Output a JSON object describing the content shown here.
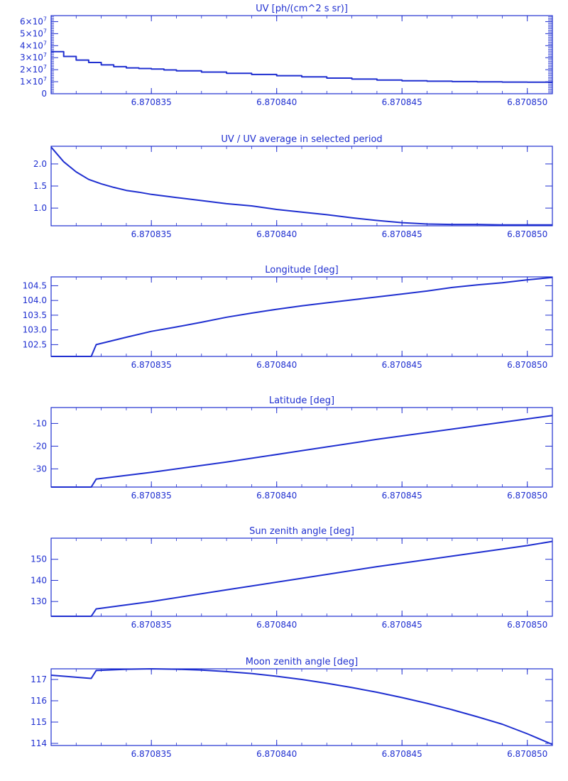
{
  "chart_data": [
    {
      "type": "line",
      "title": "UV [ph/(cm^2 s sr)]",
      "xlabel": "",
      "ylabel": "",
      "xlim": [
        6.870831,
        6.870851
      ],
      "ylim": [
        0,
        65000000.0
      ],
      "x_ticks": [
        6.870835,
        6.87084,
        6.870845,
        6.87085
      ],
      "x_tick_labels": [
        "6.870835",
        "6.870840",
        "6.870845",
        "6.870850"
      ],
      "y_ticks": [
        0,
        10000000.0,
        20000000.0,
        30000000.0,
        40000000.0,
        50000000.0,
        60000000.0
      ],
      "y_tick_labels": [
        {
          "mantissa": "0",
          "exponent": ""
        },
        {
          "mantissa": "1×10",
          "exponent": "7"
        },
        {
          "mantissa": "2×10",
          "exponent": "7"
        },
        {
          "mantissa": "3×10",
          "exponent": "7"
        },
        {
          "mantissa": "4×10",
          "exponent": "7"
        },
        {
          "mantissa": "5×10",
          "exponent": "7"
        },
        {
          "mantissa": "6×10",
          "exponent": "7"
        }
      ],
      "step": true,
      "series": [
        {
          "x": [
            6.870831,
            6.8708315,
            6.870832,
            6.8708325,
            6.870833,
            6.8708335,
            6.870834,
            6.8708345,
            6.870835,
            6.8708355,
            6.870836,
            6.870837,
            6.870838,
            6.870839,
            6.87084,
            6.870841,
            6.870842,
            6.870843,
            6.870844,
            6.870845,
            6.870846,
            6.870847,
            6.870848,
            6.870849,
            6.87085,
            6.870851
          ],
          "y": [
            35000000,
            31000000,
            28000000,
            26000000,
            24000000,
            22500000,
            21500000,
            21000000,
            20500000,
            19800000,
            19000000,
            18000000,
            17000000,
            16000000,
            15000000,
            14000000,
            13000000,
            12200000,
            11400000,
            10800000,
            10400000,
            10100000,
            9900000,
            9700000,
            9600000,
            9500000
          ]
        }
      ]
    },
    {
      "type": "line",
      "title": "UV / UV average in selected period",
      "xlabel": "",
      "ylabel": "",
      "xlim": [
        6.870831,
        6.870851
      ],
      "ylim": [
        0.6,
        2.4
      ],
      "x_ticks": [
        6.870835,
        6.87084,
        6.870845,
        6.87085
      ],
      "x_tick_labels": [
        "6.870835",
        "6.870840",
        "6.870845",
        "6.870850"
      ],
      "y_ticks": [
        1.0,
        1.5,
        2.0
      ],
      "y_tick_labels": [
        "1.0",
        "1.5",
        "2.0"
      ],
      "series": [
        {
          "x": [
            6.870831,
            6.8708315,
            6.870832,
            6.8708325,
            6.870833,
            6.8708335,
            6.870834,
            6.8708345,
            6.870835,
            6.870836,
            6.870837,
            6.870838,
            6.870839,
            6.87084,
            6.870841,
            6.870842,
            6.870843,
            6.870844,
            6.870845,
            6.870846,
            6.870847,
            6.870848,
            6.870849,
            6.87085,
            6.870851
          ],
          "y": [
            2.38,
            2.05,
            1.82,
            1.65,
            1.55,
            1.47,
            1.4,
            1.36,
            1.31,
            1.24,
            1.17,
            1.1,
            1.05,
            0.97,
            0.91,
            0.85,
            0.78,
            0.72,
            0.67,
            0.64,
            0.63,
            0.63,
            0.62,
            0.62,
            0.62
          ]
        }
      ]
    },
    {
      "type": "line",
      "title": "Longitude [deg]",
      "xlabel": "",
      "ylabel": "",
      "xlim": [
        6.870831,
        6.870851
      ],
      "ylim": [
        102.1,
        104.8
      ],
      "x_ticks": [
        6.870835,
        6.87084,
        6.870845,
        6.87085
      ],
      "x_tick_labels": [
        "6.870835",
        "6.870840",
        "6.870845",
        "6.870850"
      ],
      "y_ticks": [
        102.5,
        103.0,
        103.5,
        104.0,
        104.5
      ],
      "y_tick_labels": [
        "102.5",
        "103.0",
        "103.5",
        "104.0",
        "104.5"
      ],
      "series": [
        {
          "x": [
            6.870831,
            6.8708326,
            6.8708328,
            6.870834,
            6.870835,
            6.870836,
            6.870837,
            6.870838,
            6.870839,
            6.87084,
            6.870841,
            6.870842,
            6.870843,
            6.870844,
            6.870845,
            6.870846,
            6.870847,
            6.870848,
            6.870849,
            6.87085,
            6.870851
          ],
          "y": [
            102.1,
            102.1,
            102.5,
            102.75,
            102.95,
            103.1,
            103.26,
            103.43,
            103.57,
            103.7,
            103.82,
            103.92,
            104.02,
            104.12,
            104.22,
            104.32,
            104.44,
            104.53,
            104.6,
            104.7,
            104.78
          ]
        }
      ]
    },
    {
      "type": "line",
      "title": "Latitude [deg]",
      "xlabel": "",
      "ylabel": "",
      "xlim": [
        6.870831,
        6.870851
      ],
      "ylim": [
        -38,
        -3
      ],
      "x_ticks": [
        6.870835,
        6.87084,
        6.870845,
        6.87085
      ],
      "x_tick_labels": [
        "6.870835",
        "6.870840",
        "6.870845",
        "6.870850"
      ],
      "y_ticks": [
        -30,
        -20,
        -10
      ],
      "y_tick_labels": [
        "-30",
        "-20",
        "-10"
      ],
      "series": [
        {
          "x": [
            6.870831,
            6.8708326,
            6.8708328,
            6.870835,
            6.870838,
            6.870841,
            6.870844,
            6.870847,
            6.87085,
            6.870851
          ],
          "y": [
            -38,
            -38,
            -34.5,
            -31.5,
            -27,
            -22,
            -17,
            -12.5,
            -8,
            -6.5
          ]
        }
      ]
    },
    {
      "type": "line",
      "title": "Sun zenith angle [deg]",
      "xlabel": "",
      "ylabel": "",
      "xlim": [
        6.870831,
        6.870851
      ],
      "ylim": [
        123,
        160
      ],
      "x_ticks": [
        6.870835,
        6.87084,
        6.870845,
        6.87085
      ],
      "x_tick_labels": [
        "6.870835",
        "6.870840",
        "6.870845",
        "6.870850"
      ],
      "y_ticks": [
        130,
        140,
        150
      ],
      "y_tick_labels": [
        "130",
        "140",
        "150"
      ],
      "series": [
        {
          "x": [
            6.870831,
            6.8708326,
            6.8708328,
            6.870835,
            6.870838,
            6.870841,
            6.870844,
            6.870847,
            6.87085,
            6.870851
          ],
          "y": [
            123,
            123,
            126.5,
            130,
            135.5,
            141,
            146.5,
            151.5,
            156.5,
            158.5
          ]
        }
      ]
    },
    {
      "type": "line",
      "title": "Moon zenith angle [deg]",
      "xlabel": "",
      "ylabel": "",
      "xlim": [
        6.870831,
        6.870851
      ],
      "ylim": [
        113.9,
        117.5
      ],
      "x_ticks": [
        6.870835,
        6.87084,
        6.870845,
        6.87085
      ],
      "x_tick_labels": [
        "6.870835",
        "6.870840",
        "6.870845",
        "6.870850"
      ],
      "y_ticks": [
        114,
        115,
        116,
        117
      ],
      "y_tick_labels": [
        "114",
        "115",
        "116",
        "117"
      ],
      "series": [
        {
          "x": [
            6.870831,
            6.8708326,
            6.8708328,
            6.870834,
            6.870835,
            6.870836,
            6.870837,
            6.870838,
            6.870839,
            6.87084,
            6.870841,
            6.870842,
            6.870843,
            6.870844,
            6.870845,
            6.870846,
            6.870847,
            6.870848,
            6.870849,
            6.87085,
            6.870851
          ],
          "y": [
            117.2,
            117.05,
            117.42,
            117.48,
            117.5,
            117.48,
            117.44,
            117.37,
            117.28,
            117.15,
            117.0,
            116.82,
            116.62,
            116.4,
            116.15,
            115.88,
            115.58,
            115.25,
            114.9,
            114.45,
            113.95
          ]
        }
      ]
    }
  ],
  "colors": {
    "axis": "#1f2fd0",
    "line": "#1f2fd0",
    "background": "#ffffff"
  }
}
